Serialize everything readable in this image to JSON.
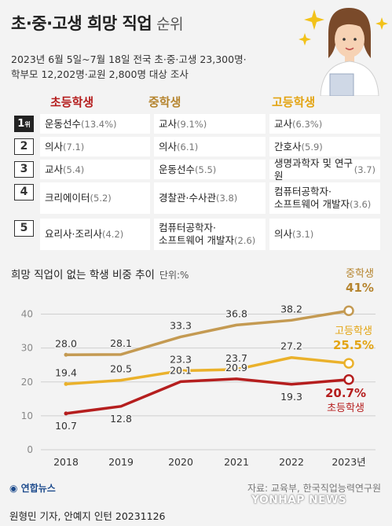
{
  "header": {
    "title": "초·중·고생 희망 직업",
    "title_suffix": "순위",
    "desc_line1": "2023년 6월 5일~7월 18일 전국 초·중·고생 23,300명·",
    "desc_line2": "학부모 12,202명·교원 2,800명 대상 조사"
  },
  "ranking": {
    "columns": [
      "초등학생",
      "중학생",
      "고등학생"
    ],
    "rank_marker_suffix": "위",
    "rows": [
      {
        "rank": "1",
        "cells": [
          {
            "job": "운동선수",
            "pct": "(13.4%)"
          },
          {
            "job": "교사",
            "pct": "(9.1%)"
          },
          {
            "job": "교사",
            "pct": "(6.3%)"
          }
        ]
      },
      {
        "rank": "2",
        "cells": [
          {
            "job": "의사",
            "pct": "(7.1)"
          },
          {
            "job": "의사",
            "pct": "(6.1)"
          },
          {
            "job": "간호사",
            "pct": "(5.9)"
          }
        ]
      },
      {
        "rank": "3",
        "cells": [
          {
            "job": "교사",
            "pct": "(5.4)"
          },
          {
            "job": "운동선수",
            "pct": "(5.5)"
          },
          {
            "job": "생명과학자 및 연구원",
            "pct": "(3.7)"
          }
        ]
      },
      {
        "rank": "4",
        "cells": [
          {
            "job": "크리에이터",
            "pct": "(5.2)"
          },
          {
            "job": "경찰관·수사관",
            "pct": "(3.8)"
          },
          {
            "job": "컴퓨터공학자·\n소프트웨어 개발자",
            "pct": "(3.6)"
          }
        ]
      },
      {
        "rank": "5",
        "cells": [
          {
            "job": "요리사·조리사",
            "pct": "(4.2)"
          },
          {
            "job": "컴퓨터공학자·\n소프트웨어 개발자",
            "pct": "(2.6)"
          },
          {
            "job": "의사",
            "pct": "(3.1)"
          }
        ]
      }
    ]
  },
  "chart_title": "희망 직업이 없는 학생 비중 추이",
  "chart_unit": "단위:%",
  "chart_data": {
    "type": "line",
    "categories": [
      "2018",
      "2019",
      "2020",
      "2021",
      "2022",
      "2023년"
    ],
    "ylim": [
      0,
      45
    ],
    "yticks": [
      0,
      10,
      20,
      30,
      40
    ],
    "grid": true,
    "series": [
      {
        "name": "중학생",
        "values": [
          28.0,
          28.1,
          33.3,
          36.8,
          38.2,
          41
        ],
        "labels": [
          "28.0",
          "28.1",
          "33.3",
          "36.8",
          "38.2",
          "41%"
        ],
        "color": "#c49a52"
      },
      {
        "name": "고등학생",
        "values": [
          19.4,
          20.5,
          23.3,
          23.7,
          27.2,
          25.5
        ],
        "labels": [
          "19.4",
          "20.5",
          "23.3",
          "23.7",
          "27.2",
          "25.5%"
        ],
        "color": "#eab12b"
      },
      {
        "name": "초등학생",
        "values": [
          10.7,
          12.8,
          20.1,
          20.9,
          19.3,
          20.7
        ],
        "labels": [
          "10.7",
          "12.8",
          "20.1",
          "20.9",
          "19.3",
          "20.7%"
        ],
        "color": "#b51e1e"
      }
    ]
  },
  "colors": {
    "elementary": "#b51e1e",
    "middle": "#b5842e",
    "high": "#e3a413",
    "background": "#f3f3f3"
  },
  "footer": {
    "logo": "연합뉴스",
    "source": "자료: 교육부, 한국직업능력연구원",
    "credit": "원형민 기자, 안예지 인턴  20231126",
    "watermark": "YONHAP NEWS"
  }
}
